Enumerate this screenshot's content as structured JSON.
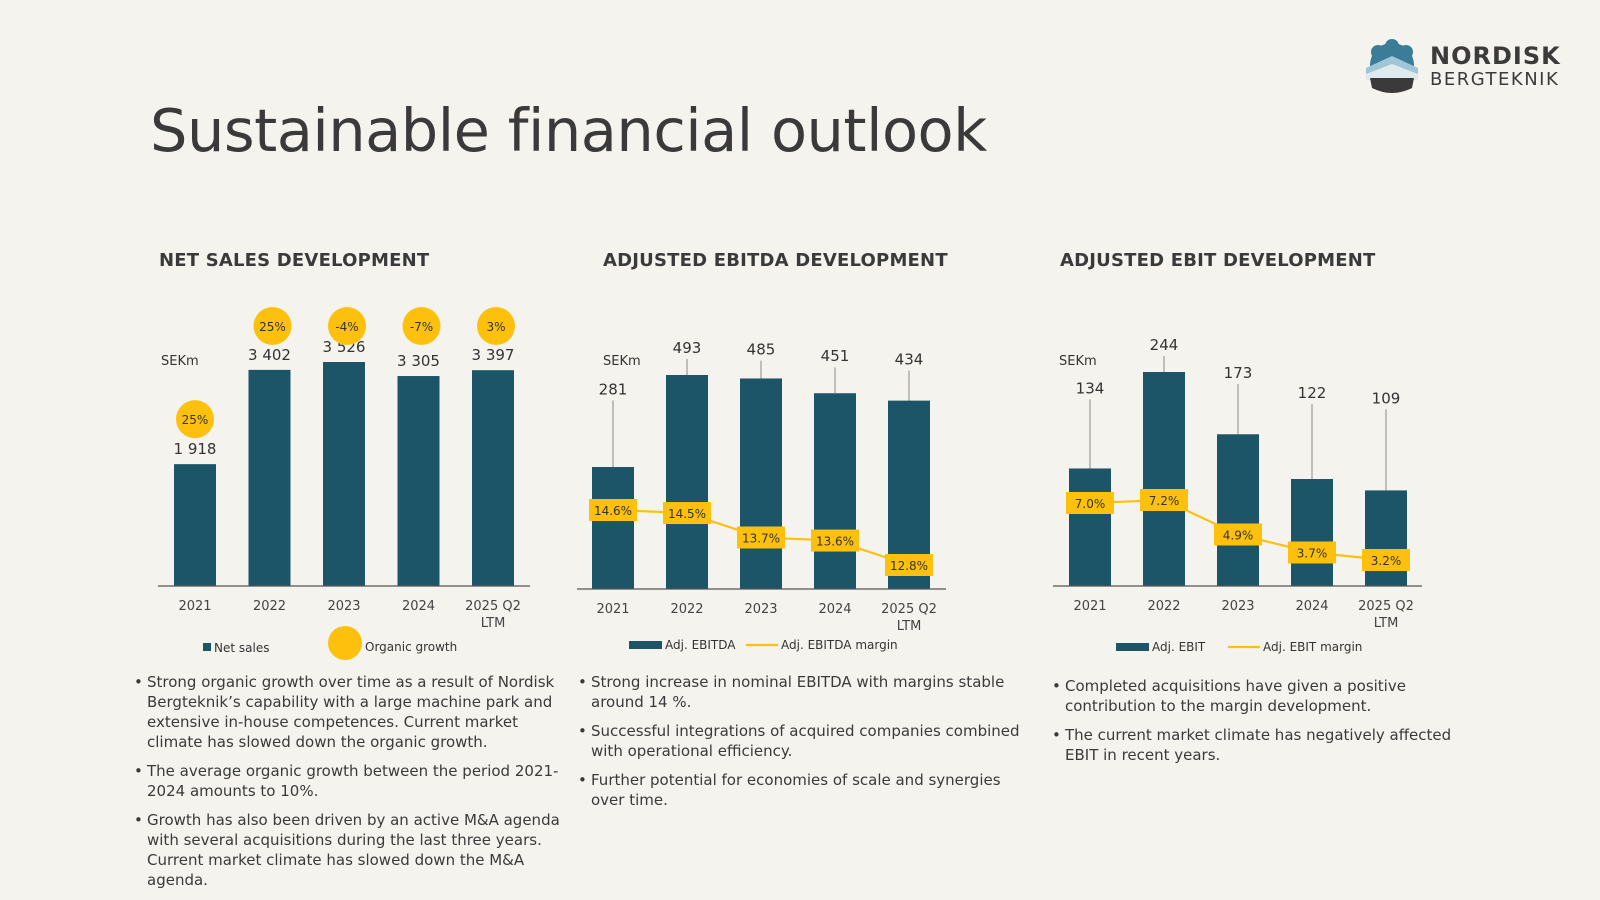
{
  "page": {
    "title": "Sustainable financial outlook",
    "logo": {
      "name": "NORDISK",
      "sub": "BERGTEKNIK"
    }
  },
  "colors": {
    "bar": "#1b5567",
    "accent": "#fdc10d",
    "axis": "#555555",
    "text": "#333333"
  },
  "sections": [
    {
      "title": "NET SALES DEVELOPMENT",
      "bullets": [
        "Strong organic growth over time as a result of Nordisk Bergteknik’s capability with a large machine park and extensive in-house competences. Current market climate has slowed down the organic growth.",
        "The average organic growth between the period 2021-2024 amounts to 10%.",
        "Growth has also been driven by an active M&A agenda with several acquisitions during the last three years. Current market climate has slowed down the M&A agenda."
      ]
    },
    {
      "title": "ADJUSTED EBITDA DEVELOPMENT",
      "bullets": [
        "Strong increase in nominal EBITDA with margins stable around 14 %.",
        "Successful integrations of acquired companies combined with operational efficiency.",
        "Further potential for economies of scale and synergies over time."
      ]
    },
    {
      "title": "ADJUSTED EBIT DEVELOPMENT",
      "bullets": [
        "Completed acquisitions have given a positive contribution to the margin development.",
        "The current market climate has negatively affected EBIT in recent years."
      ]
    }
  ],
  "chart_data": [
    {
      "type": "bar",
      "unit": "SEKm",
      "categories": [
        "2021",
        "2022",
        "2023",
        "2024",
        "2025 Q2 LTM"
      ],
      "series": [
        {
          "name": "Net sales",
          "values": [
            1918,
            3402,
            3526,
            3305,
            3397
          ],
          "labels": [
            "1 918",
            "3 402",
            "3 526",
            "3 305",
            "3 397"
          ]
        },
        {
          "name": "Organic growth",
          "labels": [
            "25%",
            "25%",
            "-4%",
            "-7%",
            "3%"
          ]
        }
      ],
      "ylim": [
        0,
        3600
      ],
      "legend_position": "bottom"
    },
    {
      "type": "bar",
      "unit": "SEKm",
      "categories": [
        "2021",
        "2022",
        "2023",
        "2024",
        "2025 Q2 LTM"
      ],
      "series": [
        {
          "name": "Adj. EBITDA",
          "values": [
            281,
            493,
            485,
            451,
            434
          ],
          "labels": [
            "281",
            "493",
            "485",
            "451",
            "434"
          ]
        },
        {
          "name": "Adj. EBITDA margin",
          "values": [
            14.6,
            14.5,
            13.7,
            13.6,
            12.8
          ],
          "labels": [
            "14.6%",
            "14.5%",
            "13.7%",
            "13.6%",
            "12.8%"
          ]
        }
      ],
      "ylim": [
        0,
        540
      ],
      "legend_position": "bottom"
    },
    {
      "type": "bar",
      "unit": "SEKm",
      "categories": [
        "2021",
        "2022",
        "2023",
        "2024",
        "2025 Q2 LTM"
      ],
      "series": [
        {
          "name": "Adj. EBIT",
          "values": [
            134,
            244,
            173,
            122,
            109
          ],
          "labels": [
            "134",
            "244",
            "173",
            "122",
            "109"
          ]
        },
        {
          "name": "Adj. EBIT margin",
          "values": [
            7.0,
            7.2,
            4.9,
            3.7,
            3.2
          ],
          "labels": [
            "7.0%",
            "7.2%",
            "4.9%",
            "3.7%",
            "3.2%"
          ]
        }
      ],
      "ylim": [
        0,
        260
      ],
      "legend_position": "bottom"
    }
  ]
}
